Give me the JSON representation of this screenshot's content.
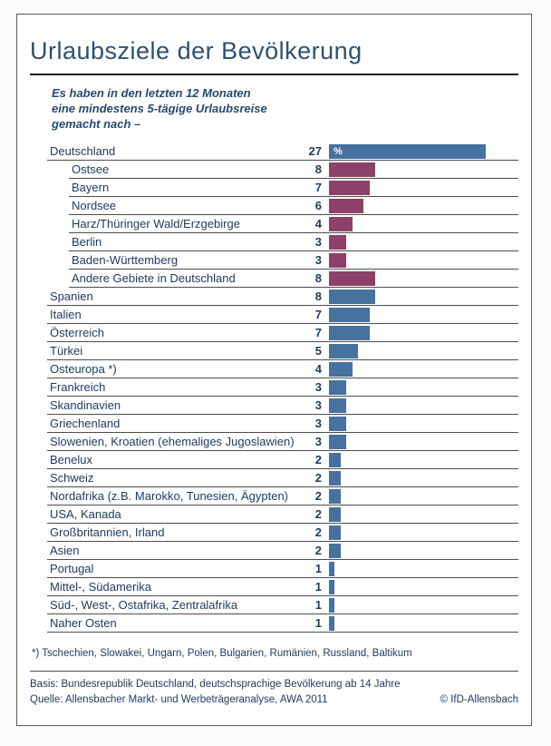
{
  "card": {
    "title": "Urlaubsziele der Bevölkerung",
    "subtitle": "Es haben in den letzten 12 Monaten\neine mindestens 5-tägige Urlaubsreise\ngemacht nach –",
    "footnote": "*) Tschechien, Slowakei, Ungarn, Polen, Bulgarien, Rumänien, Russland, Baltikum",
    "basis": "Basis: Bundesrepublik Deutschland, deutschsprachige Bevölkerung ab 14 Jahre",
    "quelle": "Quelle: Allensbacher Markt- und Werbeträgeranalyse, AWA 2011",
    "copyright": "© IfD-Allensbach"
  },
  "chart_data": {
    "type": "bar",
    "orientation": "horizontal",
    "unit": "%",
    "title": "Urlaubsziele der Bevölkerung",
    "xlim": [
      0,
      27
    ],
    "grid": false,
    "colors": {
      "blue": "#47719e",
      "maroon": "#8e4168"
    },
    "categories": [
      "Deutschland",
      "Ostsee",
      "Bayern",
      "Nordsee",
      "Harz/Thüringer Wald/Erzgebirge",
      "Berlin",
      "Baden-Württemberg",
      "Andere Gebiete in Deutschland",
      "Spanien",
      "Italien",
      "Österreich",
      "Türkei",
      "Osteuropa *)",
      "Frankreich",
      "Skandinavien",
      "Griechenland",
      "Slowenien, Kroatien (ehemaliges Jugoslawien)",
      "Benelux",
      "Schweiz",
      "Nordafrika (z.B. Marokko, Tunesien, Ägypten)",
      "USA, Kanada",
      "Großbritannien, Irland",
      "Asien",
      "Portugal",
      "Mittel-, Südamerika",
      "Süd-, West-, Ostafrika, Zentralafrika",
      "Naher Osten"
    ],
    "values": [
      27,
      8,
      7,
      6,
      4,
      3,
      3,
      8,
      8,
      7,
      7,
      5,
      4,
      3,
      3,
      3,
      3,
      2,
      2,
      2,
      2,
      2,
      2,
      1,
      1,
      1,
      1
    ],
    "rows": [
      {
        "label": "Deutschland",
        "value": 27,
        "indent": false,
        "color": "blue",
        "show_percent": true
      },
      {
        "label": "Ostsee",
        "value": 8,
        "indent": true,
        "color": "maroon",
        "show_percent": false
      },
      {
        "label": "Bayern",
        "value": 7,
        "indent": true,
        "color": "maroon",
        "show_percent": false
      },
      {
        "label": "Nordsee",
        "value": 6,
        "indent": true,
        "color": "maroon",
        "show_percent": false
      },
      {
        "label": "Harz/Thüringer Wald/Erzgebirge",
        "value": 4,
        "indent": true,
        "color": "maroon",
        "show_percent": false
      },
      {
        "label": "Berlin",
        "value": 3,
        "indent": true,
        "color": "maroon",
        "show_percent": false
      },
      {
        "label": "Baden-Württemberg",
        "value": 3,
        "indent": true,
        "color": "maroon",
        "show_percent": false
      },
      {
        "label": "Andere Gebiete in Deutschland",
        "value": 8,
        "indent": true,
        "color": "maroon",
        "show_percent": false
      },
      {
        "label": "Spanien",
        "value": 8,
        "indent": false,
        "color": "blue",
        "show_percent": false
      },
      {
        "label": "Italien",
        "value": 7,
        "indent": false,
        "color": "blue",
        "show_percent": false
      },
      {
        "label": "Österreich",
        "value": 7,
        "indent": false,
        "color": "blue",
        "show_percent": false
      },
      {
        "label": "Türkei",
        "value": 5,
        "indent": false,
        "color": "blue",
        "show_percent": false
      },
      {
        "label": "Osteuropa *)",
        "value": 4,
        "indent": false,
        "color": "blue",
        "show_percent": false
      },
      {
        "label": "Frankreich",
        "value": 3,
        "indent": false,
        "color": "blue",
        "show_percent": false
      },
      {
        "label": "Skandinavien",
        "value": 3,
        "indent": false,
        "color": "blue",
        "show_percent": false
      },
      {
        "label": "Griechenland",
        "value": 3,
        "indent": false,
        "color": "blue",
        "show_percent": false
      },
      {
        "label": "Slowenien, Kroatien (ehemaliges Jugoslawien)",
        "value": 3,
        "indent": false,
        "color": "blue",
        "show_percent": false
      },
      {
        "label": "Benelux",
        "value": 2,
        "indent": false,
        "color": "blue",
        "show_percent": false
      },
      {
        "label": "Schweiz",
        "value": 2,
        "indent": false,
        "color": "blue",
        "show_percent": false
      },
      {
        "label": "Nordafrika (z.B. Marokko, Tunesien, Ägypten)",
        "value": 2,
        "indent": false,
        "color": "blue",
        "show_percent": false
      },
      {
        "label": "USA, Kanada",
        "value": 2,
        "indent": false,
        "color": "blue",
        "show_percent": false
      },
      {
        "label": "Großbritannien, Irland",
        "value": 2,
        "indent": false,
        "color": "blue",
        "show_percent": false
      },
      {
        "label": "Asien",
        "value": 2,
        "indent": false,
        "color": "blue",
        "show_percent": false
      },
      {
        "label": "Portugal",
        "value": 1,
        "indent": false,
        "color": "blue",
        "show_percent": false
      },
      {
        "label": "Mittel-, Südamerika",
        "value": 1,
        "indent": false,
        "color": "blue",
        "show_percent": false
      },
      {
        "label": "Süd-, West-, Ostafrika, Zentralafrika",
        "value": 1,
        "indent": false,
        "color": "blue",
        "show_percent": false
      },
      {
        "label": "Naher Osten",
        "value": 1,
        "indent": false,
        "color": "blue",
        "show_percent": false
      }
    ]
  }
}
